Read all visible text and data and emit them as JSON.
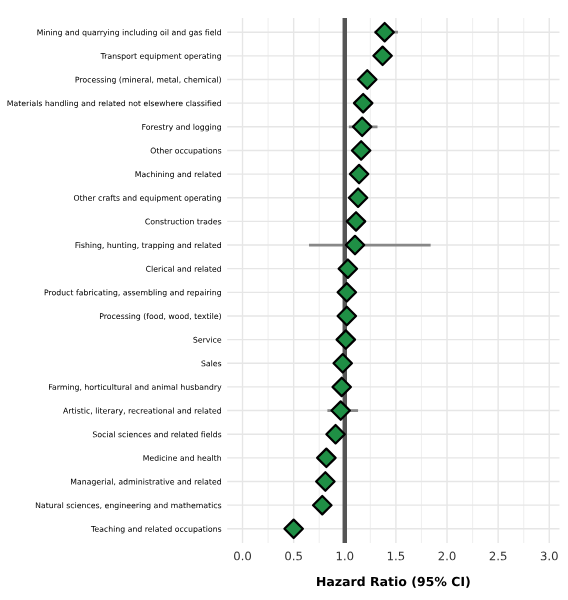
{
  "chart_data": {
    "type": "scatter",
    "orientation": "horizontal",
    "xlabel": "Hazard Ratio (95% CI)",
    "categories": [
      "Mining and quarrying including oil and gas field",
      "Transport equipment operating",
      "Processing (mineral, metal, chemical)",
      "Materials handling and related not elsewhere classified",
      "Forestry and logging",
      "Other occupations",
      "Machining and related",
      "Other crafts and equipment operating",
      "Construction trades",
      "Fishing, hunting, trapping and related",
      "Clerical and related",
      "Product fabricating, assembling and repairing",
      "Processing (food, wood, textile)",
      "Service",
      "Sales",
      "Farming, horticultural and animal husbandry",
      "Artistic, literary, recreational and related",
      "Social sciences and related fields",
      "Medicine and health",
      "Managerial, administrative and related",
      "Natural sciences, engineering and mathematics",
      "Teaching and related occupations"
    ],
    "values": [
      1.39,
      1.37,
      1.22,
      1.18,
      1.17,
      1.16,
      1.14,
      1.13,
      1.11,
      1.1,
      1.03,
      1.02,
      1.02,
      1.01,
      0.98,
      0.97,
      0.96,
      0.91,
      0.82,
      0.81,
      0.78,
      0.5
    ],
    "errors": [
      [
        1.29,
        1.52
      ],
      null,
      null,
      null,
      [
        1.04,
        1.32
      ],
      null,
      null,
      null,
      null,
      [
        0.65,
        1.84
      ],
      null,
      null,
      null,
      null,
      null,
      null,
      [
        0.83,
        1.13
      ],
      null,
      null,
      null,
      null,
      null
    ],
    "color": "#1f8f45",
    "marker": "diamond",
    "grid": true,
    "xlim": [
      -0.15,
      3.1
    ],
    "xticks": [
      {
        "value": 0,
        "label": "0.0"
      },
      {
        "value": 0.5,
        "label": "0.5"
      },
      {
        "value": 1,
        "label": "1.0"
      },
      {
        "value": 1.5,
        "label": "1.5"
      },
      {
        "value": 2,
        "label": "2.0"
      },
      {
        "value": 2.5,
        "label": "2.5"
      },
      {
        "value": 3,
        "label": "3.0"
      }
    ],
    "ref_lines": [
      {
        "axis": "x",
        "value": 1,
        "color": "#555555"
      }
    ]
  }
}
